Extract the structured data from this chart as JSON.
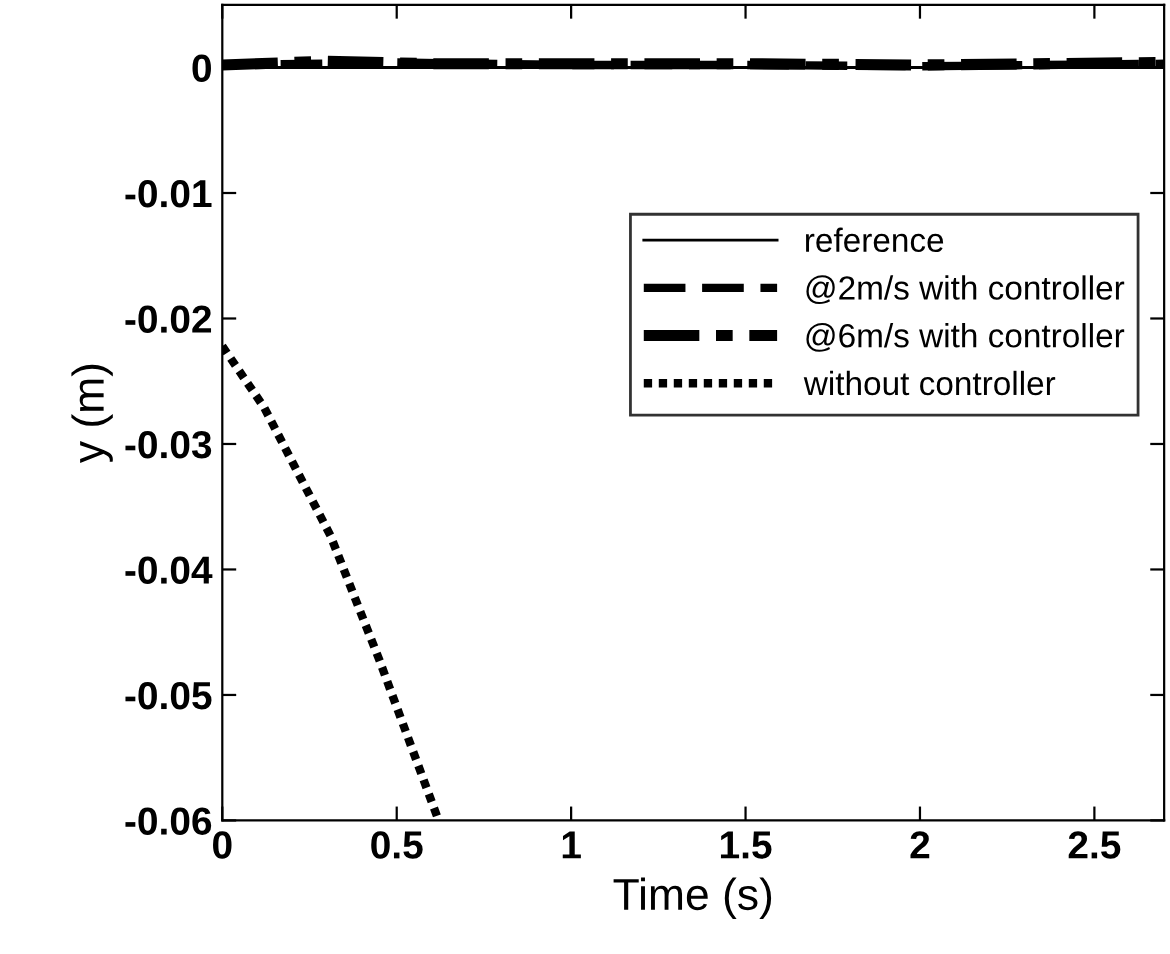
{
  "chart_data": {
    "type": "line",
    "xlabel": "Time (s)",
    "ylabel": "y (m)",
    "xlim": [
      0,
      2.7
    ],
    "ylim": [
      -0.06,
      0.005
    ],
    "xticks": [
      0,
      0.5,
      1,
      1.5,
      2,
      2.5
    ],
    "yticks": [
      0,
      -0.01,
      -0.02,
      -0.03,
      -0.04,
      -0.05,
      -0.06
    ],
    "grid": false,
    "legend": "right",
    "marker": "none",
    "series": [
      {
        "name": "reference",
        "color": "#000000",
        "line_style": "solid",
        "x": [
          0,
          2.7
        ],
        "values": [
          0,
          0
        ]
      },
      {
        "name": "@2m/s with controller",
        "color": "#000000",
        "line_style": "dashed",
        "x": [
          0,
          0.5,
          1,
          1.5,
          2,
          2.7
        ],
        "values": [
          0.0002,
          0.0004,
          0.0002,
          0.0002,
          0.0001,
          0.0003
        ]
      },
      {
        "name": "@6m/s with controller",
        "color": "#000000",
        "line_style": "dashdot",
        "x": [
          0,
          0.3,
          0.6,
          1,
          1.5,
          2,
          2.7
        ],
        "values": [
          0.0002,
          0.0005,
          0.0003,
          0.0003,
          0.0003,
          0.0002,
          0.0004
        ]
      },
      {
        "name": "without controller",
        "color": "#000000",
        "line_style": "dotted",
        "x": [
          0,
          0.12,
          0.31,
          0.45,
          0.62
        ],
        "values": [
          -0.0222,
          -0.0271,
          -0.0373,
          -0.0472,
          -0.06
        ]
      }
    ]
  }
}
